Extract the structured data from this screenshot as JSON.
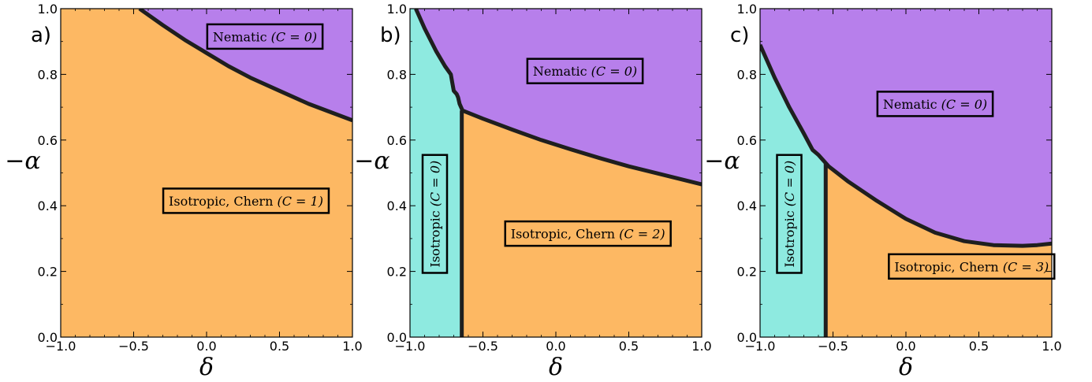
{
  "chart_data": [
    {
      "type": "area",
      "panel_label": "a)",
      "xlabel": "δ",
      "ylabel": "−α",
      "xlim": [
        -1.0,
        1.0
      ],
      "ylim": [
        0.0,
        1.0
      ],
      "xticks": [
        "−1.0",
        "−0.5",
        "0.0",
        "0.5",
        "1.0"
      ],
      "yticks": [
        "0.0",
        "0.2",
        "0.4",
        "0.6",
        "0.8",
        "1.0"
      ],
      "colors": {
        "nematic": "#b77feb",
        "chern": "#fdb863",
        "isotropic": "#8eeae0",
        "boundary": "#1f1f1f"
      },
      "nematic_boundary": {
        "x": [
          -0.46,
          -0.3,
          -0.15,
          0.0,
          0.15,
          0.3,
          0.5,
          0.7,
          0.85,
          1.0
        ],
        "y": [
          1.0,
          0.95,
          0.905,
          0.865,
          0.825,
          0.79,
          0.75,
          0.71,
          0.685,
          0.66
        ]
      },
      "isotropic_boundary": null,
      "regions": [
        {
          "name": "Nematic",
          "chern_label": "(C = 0)",
          "x": 0.4,
          "y": 0.915,
          "rotated": false
        },
        {
          "name": "Isotropic, Chern",
          "chern_label": "(C = 1)",
          "x": 0.27,
          "y": 0.415,
          "rotated": false
        }
      ]
    },
    {
      "type": "area",
      "panel_label": "b)",
      "xlabel": "δ",
      "ylabel": "−α",
      "xlim": [
        -1.0,
        1.0
      ],
      "ylim": [
        0.0,
        1.0
      ],
      "xticks": [
        "−1.0",
        "−0.5",
        "0.0",
        "0.5",
        "1.0"
      ],
      "yticks": [
        "0.0",
        "0.2",
        "0.4",
        "0.6",
        "0.8",
        "1.0"
      ],
      "colors": {
        "nematic": "#b77feb",
        "chern": "#fdb863",
        "isotropic": "#8eeae0",
        "boundary": "#1f1f1f"
      },
      "nematic_boundary": {
        "x": [
          -0.96,
          -0.9,
          -0.82,
          -0.76,
          -0.72,
          -0.71,
          -0.7,
          -0.68,
          -0.67,
          -0.66,
          -0.64,
          -0.5,
          -0.3,
          -0.1,
          0.1,
          0.3,
          0.5,
          0.7,
          1.0
        ],
        "y": [
          1.0,
          0.94,
          0.87,
          0.825,
          0.8,
          0.775,
          0.75,
          0.74,
          0.73,
          0.71,
          0.69,
          0.665,
          0.632,
          0.6,
          0.572,
          0.545,
          0.52,
          0.498,
          0.465
        ]
      },
      "isotropic_boundary": {
        "x": [
          -0.645,
          -0.645
        ],
        "y": [
          0.0,
          0.69
        ]
      },
      "regions": [
        {
          "name": "Nematic",
          "chern_label": "(C = 0)",
          "x": 0.2,
          "y": 0.81,
          "rotated": false
        },
        {
          "name": "Isotropic",
          "chern_label": "(C = 0)",
          "x": -0.83,
          "y": 0.375,
          "rotated": true
        },
        {
          "name": "Isotropic, Chern",
          "chern_label": "(C = 2)",
          "x": 0.22,
          "y": 0.315,
          "rotated": false
        }
      ]
    },
    {
      "type": "area",
      "panel_label": "c)",
      "xlabel": "δ",
      "ylabel": "−α",
      "xlim": [
        -1.0,
        1.0
      ],
      "ylim": [
        0.0,
        1.0
      ],
      "xticks": [
        "−1.0",
        "−0.5",
        "0.0",
        "0.5",
        "1.0"
      ],
      "yticks": [
        "0.0",
        "0.2",
        "0.4",
        "0.6",
        "0.8",
        "1.0"
      ],
      "colors": {
        "nematic": "#b77feb",
        "chern": "#fdb863",
        "isotropic": "#8eeae0",
        "boundary": "#1f1f1f"
      },
      "nematic_boundary": {
        "x": [
          -1.0,
          -0.9,
          -0.8,
          -0.7,
          -0.64,
          -0.6,
          -0.57,
          -0.55,
          -0.53,
          -0.4,
          -0.2,
          0.0,
          0.2,
          0.4,
          0.6,
          0.8,
          0.9,
          1.0
        ],
        "y": [
          0.89,
          0.79,
          0.7,
          0.62,
          0.57,
          0.555,
          0.54,
          0.53,
          0.52,
          0.475,
          0.415,
          0.36,
          0.318,
          0.292,
          0.28,
          0.278,
          0.28,
          0.285
        ]
      },
      "isotropic_boundary": {
        "x": [
          -0.55,
          -0.55
        ],
        "y": [
          0.0,
          0.53
        ]
      },
      "regions": [
        {
          "name": "Nematic",
          "chern_label": "(C = 0)",
          "x": 0.2,
          "y": 0.71,
          "rotated": false
        },
        {
          "name": "Isotropic",
          "chern_label": "(C = 0)",
          "x": -0.8,
          "y": 0.375,
          "rotated": true
        },
        {
          "name": "Isotropic, Chern",
          "chern_label": "(C = 3)",
          "x": 0.45,
          "y": 0.215,
          "rotated": false
        }
      ]
    }
  ]
}
